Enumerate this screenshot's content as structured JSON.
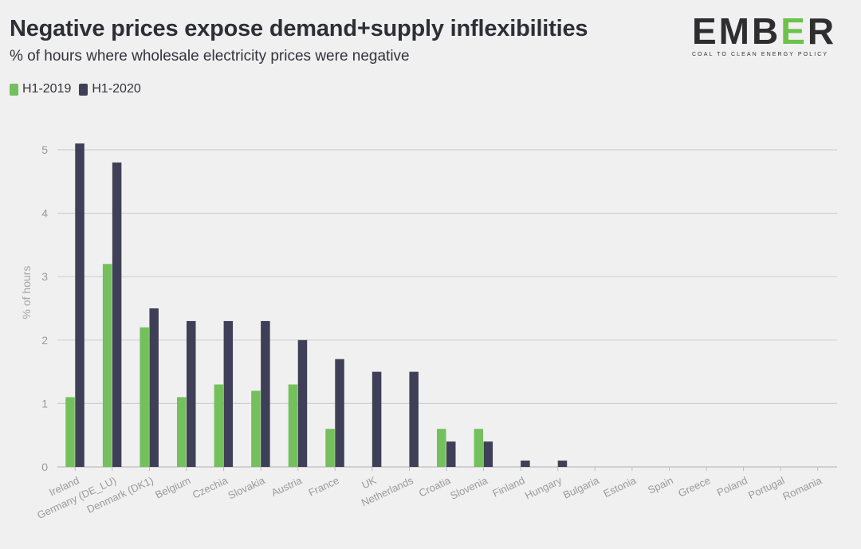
{
  "title": "Negative prices expose demand+supply inflexibilities",
  "subtitle": "% of hours where wholesale electricity prices were negative",
  "logo": {
    "word_start": "EMB",
    "word_e": "E",
    "word_end": "R",
    "tagline": "COAL TO CLEAN ENERGY POLICY"
  },
  "colors": {
    "h1_2019": "#73c05c",
    "h1_2020": "#3f3f58",
    "grid": "#cfcfcf",
    "axis_text": "#9a9a9a"
  },
  "chart_data": {
    "type": "bar",
    "title": "Negative prices expose demand+supply inflexibilities",
    "subtitle": "% of hours where wholesale electricity prices were negative",
    "xlabel": "",
    "ylabel": "% of hours",
    "ylim": [
      0,
      5
    ],
    "yticks": [
      0,
      1,
      2,
      3,
      4,
      5
    ],
    "grid": true,
    "legend_placement": "top-left",
    "categories": [
      "Ireland",
      "Germany (DE_LU)",
      "Denmark (DK1)",
      "Belgium",
      "Czechia",
      "Slovakia",
      "Austria",
      "France",
      "UK",
      "Netherlands",
      "Croatia",
      "Slovenia",
      "Finland",
      "Hungary",
      "Bulgaria",
      "Estonia",
      "Spain",
      "Greece",
      "Poland",
      "Portugal",
      "Romania"
    ],
    "series": [
      {
        "name": "H1-2019",
        "values": [
          1.1,
          3.2,
          2.2,
          1.1,
          1.3,
          1.2,
          1.3,
          0.6,
          0,
          0,
          0.6,
          0.6,
          0,
          0,
          0,
          0,
          0,
          0,
          0,
          0,
          0
        ]
      },
      {
        "name": "H1-2020",
        "values": [
          5.1,
          4.8,
          2.5,
          2.3,
          2.3,
          2.3,
          2.0,
          1.7,
          1.5,
          1.5,
          0.4,
          0.4,
          0.1,
          0.1,
          0,
          0,
          0,
          0,
          0,
          0,
          0
        ]
      }
    ]
  }
}
